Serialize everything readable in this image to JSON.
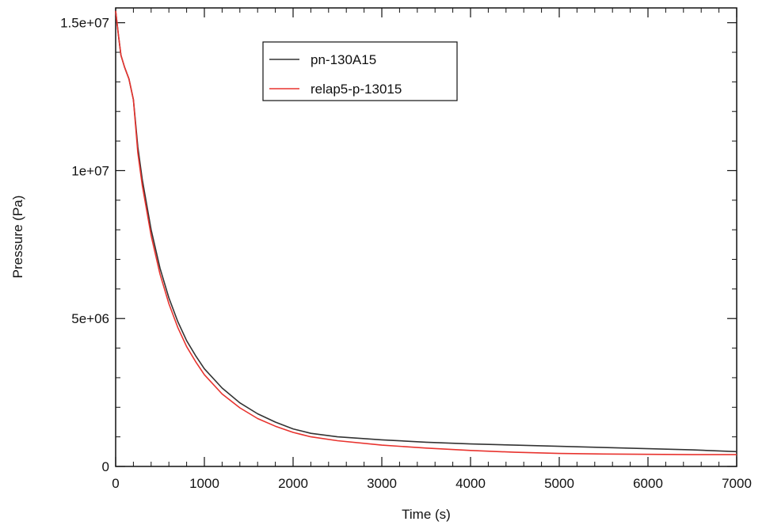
{
  "chart_data": {
    "type": "line",
    "title": "",
    "xlabel": "Time (s)",
    "ylabel": "Pressure (Pa)",
    "xlim": [
      0,
      7000
    ],
    "ylim": [
      0,
      15500000
    ],
    "xticks": [
      0,
      1000,
      2000,
      3000,
      4000,
      5000,
      6000,
      7000
    ],
    "xtick_labels": [
      "0",
      "1000",
      "2000",
      "3000",
      "4000",
      "5000",
      "6000",
      "7000"
    ],
    "yticks": [
      0,
      5000000,
      10000000,
      15000000
    ],
    "ytick_labels": [
      "0",
      "5e+06",
      "1e+07",
      "1.5e+07"
    ],
    "grid": false,
    "legend_position": "top-center",
    "series": [
      {
        "name": "pn-130A15",
        "color": "#333333",
        "x": [
          0,
          30,
          60,
          100,
          150,
          200,
          250,
          300,
          400,
          500,
          600,
          700,
          800,
          900,
          1000,
          1200,
          1400,
          1600,
          1800,
          2000,
          2200,
          2500,
          3000,
          3500,
          4000,
          4500,
          5000,
          5500,
          6000,
          6500,
          7000
        ],
        "y": [
          15400000,
          14600000,
          13900000,
          13500000,
          13100000,
          12400000,
          10800000,
          9700000,
          8000000,
          6700000,
          5700000,
          4900000,
          4250000,
          3750000,
          3300000,
          2650000,
          2150000,
          1780000,
          1500000,
          1270000,
          1120000,
          1000000,
          900000,
          820000,
          760000,
          720000,
          680000,
          640000,
          600000,
          560000,
          500000
        ]
      },
      {
        "name": "relap5-p-13015",
        "color": "#e8332e",
        "x": [
          0,
          30,
          60,
          100,
          150,
          200,
          250,
          300,
          400,
          500,
          600,
          700,
          800,
          900,
          1000,
          1200,
          1400,
          1600,
          1800,
          2000,
          2200,
          2500,
          3000,
          3500,
          4000,
          4500,
          5000,
          5500,
          6000,
          6500,
          7000
        ],
        "y": [
          15400000,
          14600000,
          13900000,
          13500000,
          13100000,
          12400000,
          10600000,
          9500000,
          7800000,
          6500000,
          5500000,
          4700000,
          4050000,
          3550000,
          3100000,
          2450000,
          1980000,
          1620000,
          1360000,
          1150000,
          1000000,
          870000,
          720000,
          620000,
          540000,
          480000,
          440000,
          420000,
          410000,
          400000,
          400000
        ]
      }
    ]
  }
}
